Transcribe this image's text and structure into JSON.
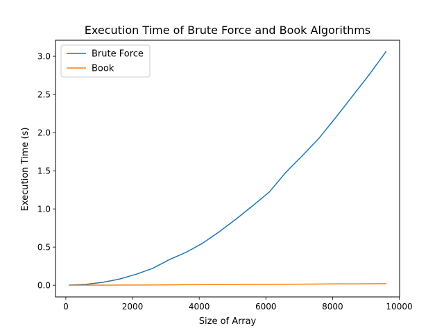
{
  "chart_data": {
    "type": "line",
    "title": "Execution Time of Brute Force and Book Algorithms",
    "xlabel": "Size of Array",
    "ylabel": "Execution Time (s)",
    "xlim": [
      -310,
      10010
    ],
    "ylim": [
      -0.153,
      3.21
    ],
    "xticks": [
      0,
      2000,
      4000,
      6000,
      8000,
      10000
    ],
    "xtick_labels": [
      "0",
      "2000",
      "4000",
      "6000",
      "8000",
      "10000"
    ],
    "yticks": [
      0.0,
      0.5,
      1.0,
      1.5,
      2.0,
      2.5,
      3.0
    ],
    "ytick_labels": [
      "0.0",
      "0.5",
      "1.0",
      "1.5",
      "2.0",
      "2.5",
      "3.0"
    ],
    "grid": false,
    "legend_position": "upper-left",
    "x": [
      100,
      600,
      1100,
      1600,
      2100,
      2600,
      3100,
      3600,
      4100,
      4600,
      5100,
      5600,
      6100,
      6600,
      7100,
      7600,
      8100,
      8600,
      9100,
      9600
    ],
    "series": [
      {
        "name": "Brute Force",
        "color": "#1f77b4",
        "values": [
          0.003,
          0.012,
          0.038,
          0.08,
          0.143,
          0.22,
          0.335,
          0.43,
          0.55,
          0.7,
          0.865,
          1.04,
          1.22,
          1.48,
          1.7,
          1.93,
          2.2,
          2.48,
          2.76,
          3.06
        ]
      },
      {
        "name": "Book",
        "color": "#ff7f0e",
        "values": [
          0.0005,
          0.001,
          0.002,
          0.0025,
          0.003,
          0.004,
          0.005,
          0.007,
          0.008,
          0.009,
          0.01,
          0.011,
          0.012,
          0.013,
          0.014,
          0.016,
          0.019,
          0.018,
          0.02,
          0.021
        ]
      }
    ]
  }
}
